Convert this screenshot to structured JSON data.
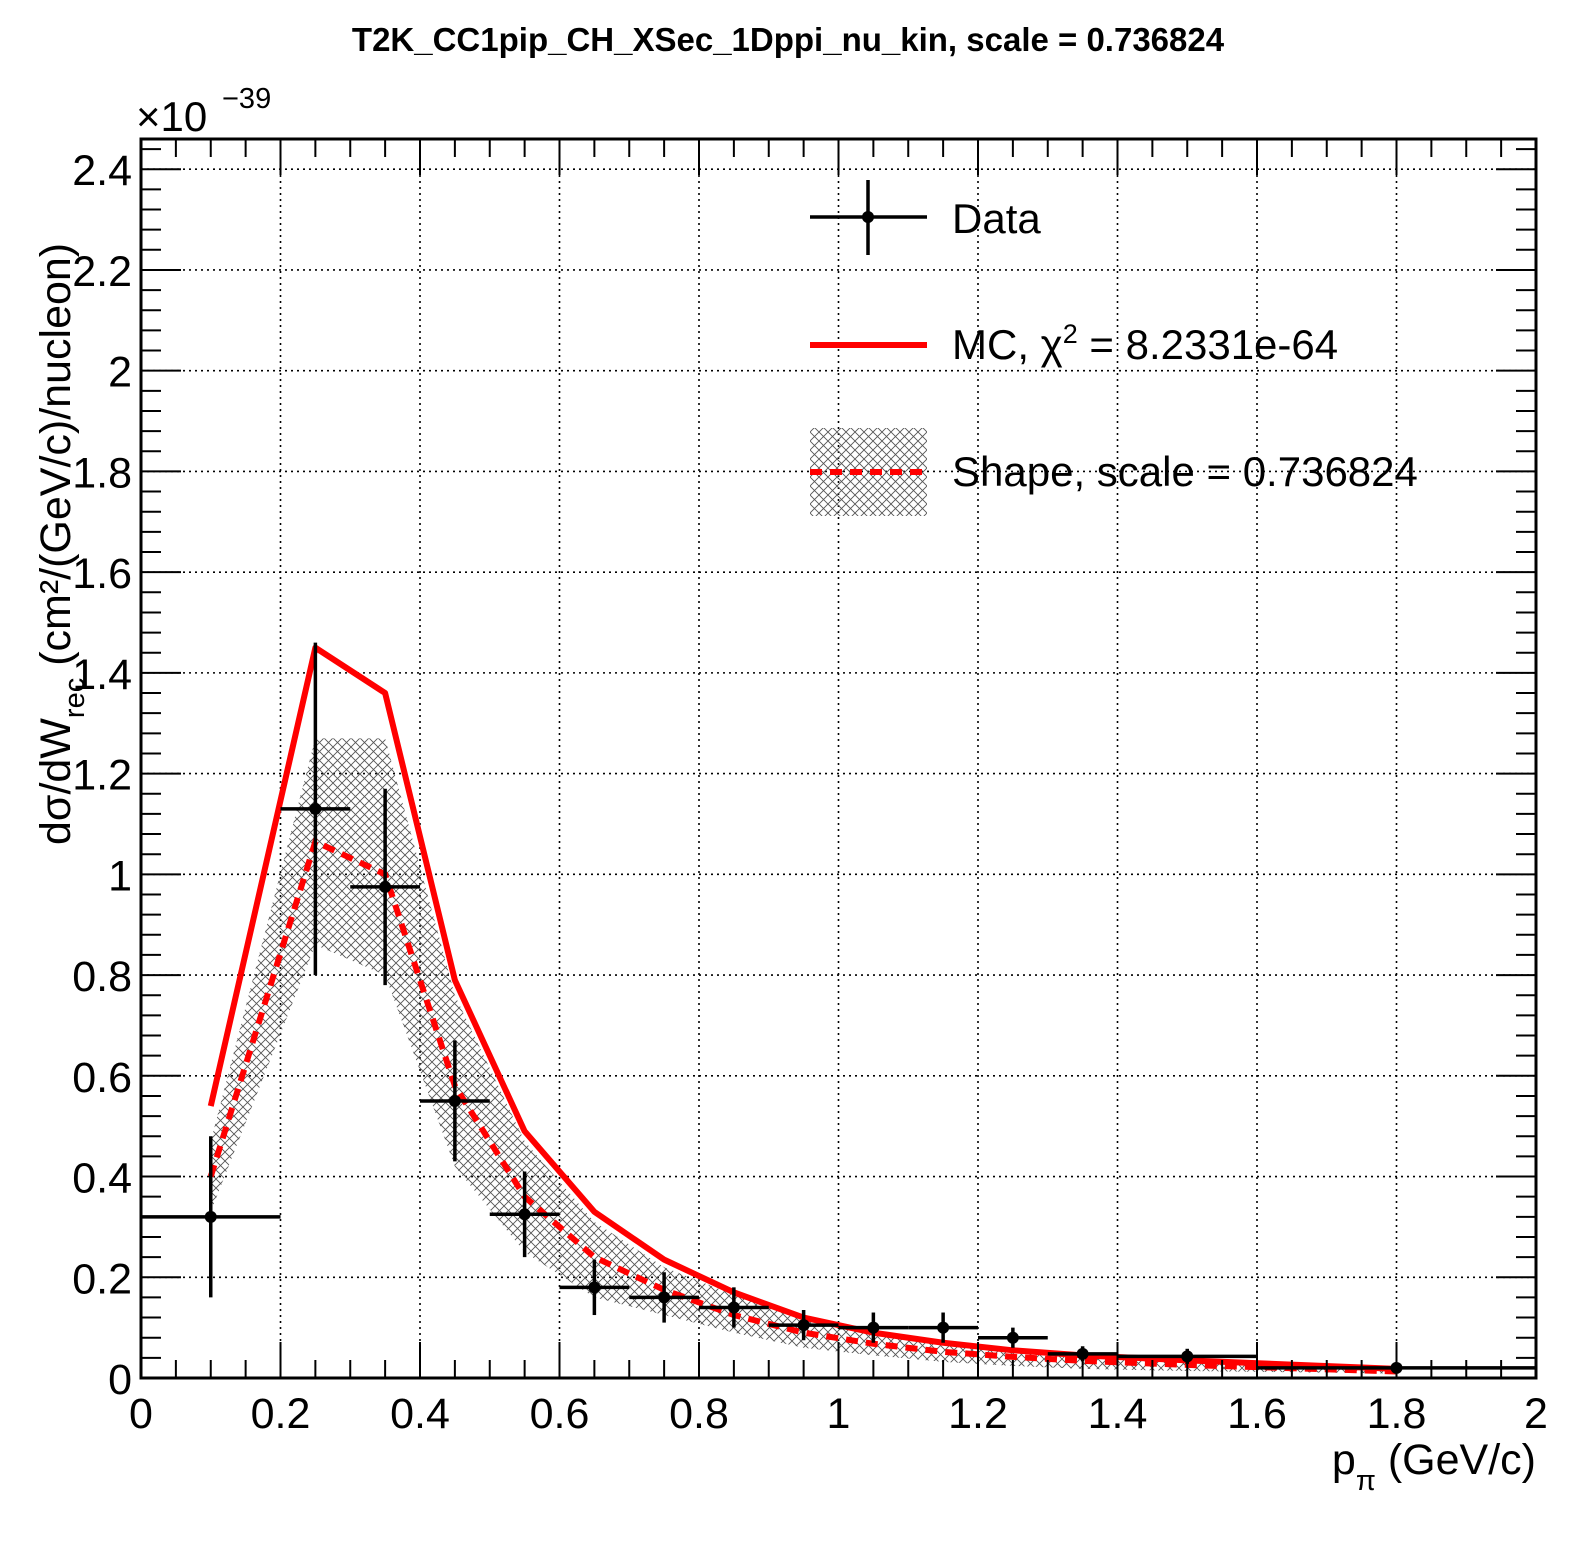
{
  "chart_data": {
    "type": "line",
    "title": "T2K_CC1pip_CH_XSec_1Dppi_nu_kin, scale = 0.736824",
    "exponent_label": "×10",
    "exponent_power": "−39",
    "xlabel": "p",
    "xlabel_sub": "π",
    "xlabel_units": "(GeV/c)",
    "ylabel": "dσ/dW",
    "ylabel_sub": "rec",
    "ylabel_units": "(cm²/(GeV/c)/nucleon)",
    "xlim": [
      0,
      2
    ],
    "ylim": [
      0,
      2.46
    ],
    "grid": true,
    "legend_position": "top-right",
    "x_ticks": [
      {
        "value": 0,
        "label": "0"
      },
      {
        "value": 0.2,
        "label": "0.2"
      },
      {
        "value": 0.4,
        "label": "0.4"
      },
      {
        "value": 0.6,
        "label": "0.6"
      },
      {
        "value": 0.8,
        "label": "0.8"
      },
      {
        "value": 1,
        "label": "1"
      },
      {
        "value": 1.2,
        "label": "1.2"
      },
      {
        "value": 1.4,
        "label": "1.4"
      },
      {
        "value": 1.6,
        "label": "1.6"
      },
      {
        "value": 1.8,
        "label": "1.8"
      },
      {
        "value": 2,
        "label": "2"
      }
    ],
    "y_ticks": [
      {
        "value": 0,
        "label": "0"
      },
      {
        "value": 0.2,
        "label": "0.2"
      },
      {
        "value": 0.4,
        "label": "0.4"
      },
      {
        "value": 0.6,
        "label": "0.6"
      },
      {
        "value": 0.8,
        "label": "0.8"
      },
      {
        "value": 1,
        "label": "1"
      },
      {
        "value": 1.2,
        "label": "1.2"
      },
      {
        "value": 1.4,
        "label": "1.4"
      },
      {
        "value": 1.6,
        "label": "1.6"
      },
      {
        "value": 1.8,
        "label": "1.8"
      },
      {
        "value": 2,
        "label": "2"
      },
      {
        "value": 2.2,
        "label": "2.2"
      },
      {
        "value": 2.4,
        "label": "2.4"
      }
    ],
    "legend": {
      "data": "Data",
      "mc_prefix": "MC, χ",
      "mc_sup": "2",
      "mc_suffix": " = 8.2331e-64",
      "shape": "Shape, scale = 0.736824"
    },
    "colors": {
      "data": "#000000",
      "mc": "#ff0000",
      "shape": "#ff0000",
      "band": "#555555"
    },
    "series": [
      {
        "name": "Data",
        "style": "points-with-errors",
        "points": [
          {
            "x": 0.1,
            "xlo": 0.0,
            "xhi": 0.2,
            "y": 0.32,
            "err": 0.16
          },
          {
            "x": 0.25,
            "xlo": 0.2,
            "xhi": 0.3,
            "y": 1.13,
            "err": 0.33
          },
          {
            "x": 0.35,
            "xlo": 0.3,
            "xhi": 0.4,
            "y": 0.975,
            "err": 0.195
          },
          {
            "x": 0.45,
            "xlo": 0.4,
            "xhi": 0.5,
            "y": 0.55,
            "err": 0.12
          },
          {
            "x": 0.55,
            "xlo": 0.5,
            "xhi": 0.6,
            "y": 0.325,
            "err": 0.085
          },
          {
            "x": 0.65,
            "xlo": 0.6,
            "xhi": 0.7,
            "y": 0.18,
            "err": 0.055
          },
          {
            "x": 0.75,
            "xlo": 0.7,
            "xhi": 0.8,
            "y": 0.16,
            "err": 0.05
          },
          {
            "x": 0.85,
            "xlo": 0.8,
            "xhi": 0.9,
            "y": 0.14,
            "err": 0.04
          },
          {
            "x": 0.95,
            "xlo": 0.9,
            "xhi": 1.0,
            "y": 0.105,
            "err": 0.03
          },
          {
            "x": 1.05,
            "xlo": 1.0,
            "xhi": 1.1,
            "y": 0.1,
            "err": 0.03
          },
          {
            "x": 1.15,
            "xlo": 1.1,
            "xhi": 1.2,
            "y": 0.1,
            "err": 0.03
          },
          {
            "x": 1.25,
            "xlo": 1.2,
            "xhi": 1.3,
            "y": 0.08,
            "err": 0.02
          },
          {
            "x": 1.35,
            "xlo": 1.3,
            "xhi": 1.4,
            "y": 0.048,
            "err": 0.015
          },
          {
            "x": 1.5,
            "xlo": 1.4,
            "xhi": 1.6,
            "y": 0.043,
            "err": 0.015
          },
          {
            "x": 1.8,
            "xlo": 1.6,
            "xhi": 2.0,
            "y": 0.02,
            "err": 0.006
          }
        ]
      },
      {
        "name": "MC",
        "style": "solid",
        "x": [
          0.1,
          0.25,
          0.35,
          0.45,
          0.55,
          0.65,
          0.75,
          0.85,
          0.95,
          1.05,
          1.15,
          1.25,
          1.35,
          1.5,
          1.8
        ],
        "y": [
          0.54,
          1.45,
          1.36,
          0.79,
          0.49,
          0.33,
          0.235,
          0.17,
          0.12,
          0.09,
          0.07,
          0.055,
          0.045,
          0.035,
          0.018
        ]
      },
      {
        "name": "Shape",
        "style": "dashed",
        "x": [
          0.1,
          0.25,
          0.35,
          0.45,
          0.55,
          0.65,
          0.75,
          0.85,
          0.95,
          1.05,
          1.15,
          1.25,
          1.35,
          1.5,
          1.8
        ],
        "y": [
          0.4,
          1.065,
          1.0,
          0.58,
          0.36,
          0.24,
          0.175,
          0.125,
          0.09,
          0.068,
          0.052,
          0.042,
          0.034,
          0.026,
          0.013
        ],
        "band_y_hi": [
          0.47,
          1.27,
          1.27,
          0.76,
          0.47,
          0.31,
          0.22,
          0.165,
          0.12,
          0.095,
          0.075,
          0.06,
          0.048,
          0.036,
          0.018
        ],
        "band_y_lo": [
          0.33,
          0.86,
          0.8,
          0.42,
          0.25,
          0.16,
          0.125,
          0.09,
          0.06,
          0.045,
          0.032,
          0.024,
          0.018,
          0.014,
          0.009
        ]
      }
    ]
  }
}
